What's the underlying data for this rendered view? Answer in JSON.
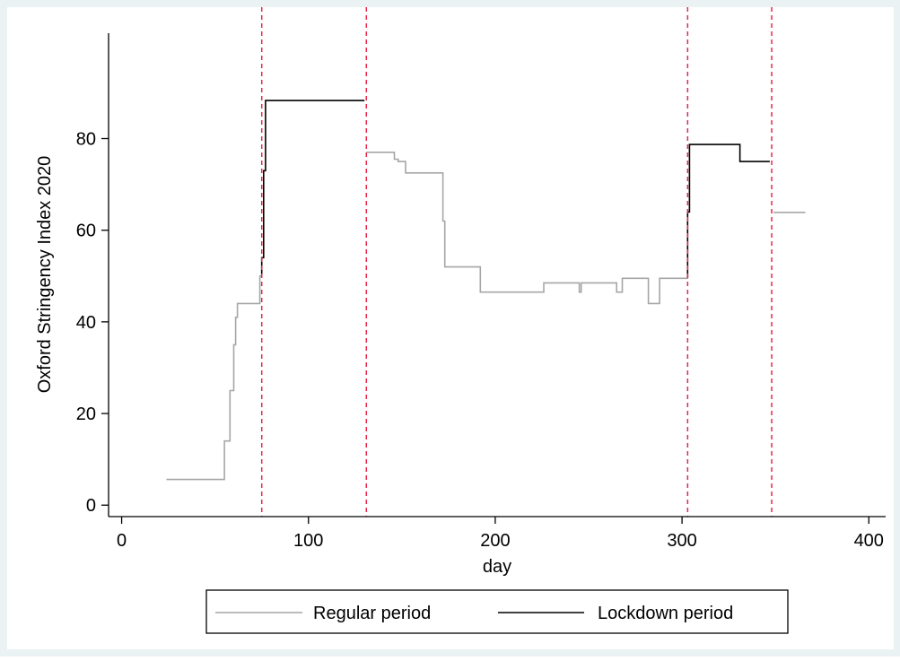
{
  "chart_data": {
    "type": "line",
    "title": "",
    "xlabel": "day",
    "ylabel": "Oxford Stringency Index 2020",
    "xlim": [
      -7,
      409
    ],
    "ylim": [
      -2.5,
      103
    ],
    "xticks": [
      0,
      100,
      200,
      300,
      400
    ],
    "yticks": [
      0,
      20,
      40,
      60,
      80
    ],
    "grid": false,
    "legend_position": "bottom",
    "colors": {
      "outer_background": "#eaf2f3",
      "plot_background": "#ffffff",
      "regular": "#a6a6a6",
      "lockdown": "#000000",
      "vlines": "#e8274b"
    },
    "vlines": [
      75,
      131,
      303,
      348
    ],
    "series": [
      {
        "name": "Regular period",
        "color": "#a6a6a6",
        "segments": [
          [
            [
              24,
              5.6
            ],
            [
              55,
              5.6
            ],
            [
              55,
              14
            ],
            [
              58,
              14
            ],
            [
              58,
              25
            ],
            [
              60,
              25
            ],
            [
              60,
              35
            ],
            [
              61,
              35
            ],
            [
              61,
              41
            ],
            [
              62,
              41
            ],
            [
              62,
              44
            ],
            [
              74,
              44
            ],
            [
              74,
              50
            ],
            [
              75,
              50
            ]
          ],
          [
            [
              131,
              77
            ],
            [
              146,
              77
            ],
            [
              146,
              75.5
            ],
            [
              148,
              75.5
            ],
            [
              148,
              75
            ],
            [
              152,
              75
            ],
            [
              152,
              72.5
            ],
            [
              172,
              72.5
            ],
            [
              172,
              62
            ],
            [
              173,
              62
            ],
            [
              173,
              52
            ],
            [
              192,
              52
            ],
            [
              192,
              46.5
            ],
            [
              226,
              46.5
            ],
            [
              226,
              48.5
            ],
            [
              245,
              48.5
            ],
            [
              245,
              46.5
            ],
            [
              246,
              46.5
            ],
            [
              246,
              48.5
            ],
            [
              265,
              48.5
            ],
            [
              265,
              46.5
            ],
            [
              268,
              46.5
            ],
            [
              268,
              49.5
            ],
            [
              282,
              49.5
            ],
            [
              282,
              44
            ],
            [
              288,
              44
            ],
            [
              288,
              49.5
            ],
            [
              303,
              49.5
            ]
          ],
          [
            [
              349,
              63.9
            ],
            [
              366,
              63.9
            ]
          ]
        ]
      },
      {
        "name": "Lockdown period",
        "color": "#000000",
        "segments": [
          [
            [
              75,
              50
            ],
            [
              75,
              54
            ],
            [
              76,
              54
            ],
            [
              76,
              73
            ],
            [
              77,
              73
            ],
            [
              77,
              88.3
            ],
            [
              130,
              88.3
            ]
          ],
          [
            [
              303,
              49.5
            ],
            [
              303,
              64
            ],
            [
              304,
              64
            ],
            [
              304,
              78.7
            ],
            [
              331,
              78.7
            ],
            [
              331,
              75
            ],
            [
              347,
              75
            ]
          ]
        ]
      }
    ]
  }
}
